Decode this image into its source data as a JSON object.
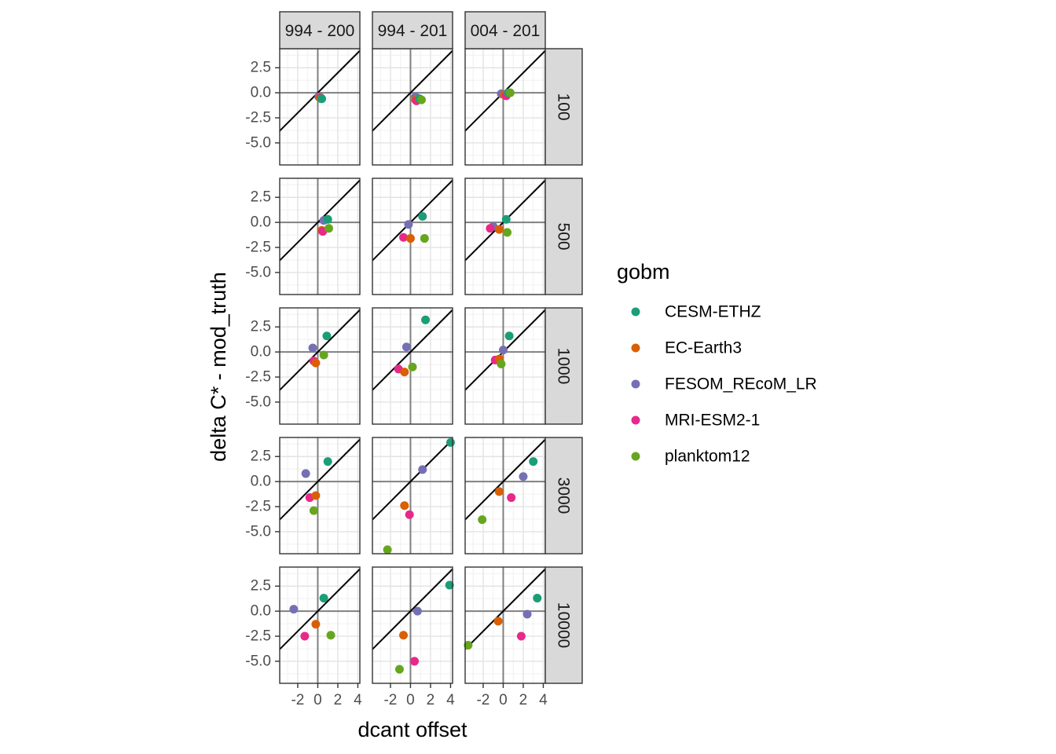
{
  "chart_data": {
    "type": "scatter",
    "title": "",
    "xlabel": "dcant offset",
    "ylabel": "delta C* - mod_truth",
    "xlim": [
      -3.8,
      4.2
    ],
    "ylim": [
      -7.2,
      4.4
    ],
    "x_ticks": [
      "-2",
      "0",
      "2",
      "4"
    ],
    "y_ticks": [
      "2.5",
      "0.0",
      "-2.5",
      "-5.0"
    ],
    "x_tick_values": [
      -2,
      0,
      2,
      4
    ],
    "y_tick_values": [
      2.5,
      0,
      -2.5,
      -5
    ],
    "grid": true,
    "reference_lines": [
      "y = x",
      "x = 0",
      "y = 0"
    ],
    "legend_position": "right",
    "col_facets": [
      "994 - 200",
      "994 - 201",
      "004 - 201"
    ],
    "row_facets": [
      "100",
      "500",
      "1000",
      "3000",
      "10000"
    ],
    "legend": {
      "title": "gobm",
      "series": [
        {
          "name": "CESM-ETHZ",
          "color": "#1B9E77"
        },
        {
          "name": "EC-Earth3",
          "color": "#D95F02"
        },
        {
          "name": "FESOM_REcoM_LR",
          "color": "#7570B3"
        },
        {
          "name": "MRI-ESM2-1",
          "color": "#E7298A"
        },
        {
          "name": "planktom12",
          "color": "#66A61E"
        }
      ]
    },
    "panels": [
      {
        "row": 0,
        "col": 0,
        "points": [
          [
            0.1,
            -0.4,
            2
          ],
          [
            0.2,
            -0.5,
            1
          ],
          [
            0.3,
            -0.5,
            3
          ],
          [
            0.35,
            -0.6,
            4
          ],
          [
            0.4,
            -0.6,
            0
          ]
        ]
      },
      {
        "row": 0,
        "col": 1,
        "points": [
          [
            0.5,
            -0.4,
            2
          ],
          [
            0.5,
            -0.7,
            1
          ],
          [
            0.6,
            -0.8,
            3
          ],
          [
            0.9,
            -0.6,
            0
          ],
          [
            1.1,
            -0.7,
            4
          ]
        ]
      },
      {
        "row": 0,
        "col": 2,
        "points": [
          [
            -0.2,
            -0.1,
            2
          ],
          [
            0.1,
            -0.2,
            1
          ],
          [
            0.3,
            -0.3,
            3
          ],
          [
            0.5,
            0.0,
            0
          ],
          [
            0.7,
            0.0,
            4
          ]
        ]
      },
      {
        "row": 1,
        "col": 0,
        "points": [
          [
            0.6,
            0.2,
            2
          ],
          [
            1.0,
            0.3,
            0
          ],
          [
            0.4,
            -0.8,
            1
          ],
          [
            0.5,
            -0.9,
            3
          ],
          [
            1.1,
            -0.6,
            4
          ]
        ]
      },
      {
        "row": 1,
        "col": 1,
        "points": [
          [
            -0.2,
            -0.2,
            2
          ],
          [
            1.2,
            0.6,
            0
          ],
          [
            -0.7,
            -1.5,
            3
          ],
          [
            0.0,
            -1.6,
            1
          ],
          [
            1.4,
            -1.6,
            4
          ]
        ]
      },
      {
        "row": 1,
        "col": 2,
        "points": [
          [
            -1.0,
            -0.4,
            2
          ],
          [
            -1.3,
            -0.6,
            3
          ],
          [
            -0.4,
            -0.7,
            1
          ],
          [
            0.3,
            0.3,
            0
          ],
          [
            0.4,
            -1.0,
            4
          ]
        ]
      },
      {
        "row": 2,
        "col": 0,
        "points": [
          [
            -0.5,
            0.4,
            2
          ],
          [
            0.9,
            1.6,
            0
          ],
          [
            -0.4,
            -0.9,
            3
          ],
          [
            -0.2,
            -1.1,
            1
          ],
          [
            0.6,
            -0.3,
            4
          ]
        ]
      },
      {
        "row": 2,
        "col": 1,
        "points": [
          [
            -0.4,
            0.5,
            2
          ],
          [
            1.5,
            3.2,
            0
          ],
          [
            -1.2,
            -1.7,
            3
          ],
          [
            -0.6,
            -2.0,
            1
          ],
          [
            0.2,
            -1.5,
            4
          ]
        ]
      },
      {
        "row": 2,
        "col": 2,
        "points": [
          [
            0.0,
            0.2,
            2
          ],
          [
            0.6,
            1.6,
            0
          ],
          [
            -0.8,
            -0.8,
            3
          ],
          [
            -0.4,
            -0.7,
            1
          ],
          [
            -0.2,
            -1.2,
            4
          ]
        ]
      },
      {
        "row": 3,
        "col": 0,
        "points": [
          [
            -1.2,
            0.8,
            2
          ],
          [
            1.0,
            2.0,
            0
          ],
          [
            -0.8,
            -1.6,
            3
          ],
          [
            -0.2,
            -1.4,
            1
          ],
          [
            -0.4,
            -2.9,
            4
          ]
        ]
      },
      {
        "row": 3,
        "col": 1,
        "points": [
          [
            1.2,
            1.2,
            2
          ],
          [
            4.0,
            3.9,
            0
          ],
          [
            -0.6,
            -2.4,
            1
          ],
          [
            -0.1,
            -3.3,
            3
          ],
          [
            -2.3,
            -6.8,
            4
          ]
        ]
      },
      {
        "row": 3,
        "col": 2,
        "points": [
          [
            2.0,
            0.5,
            2
          ],
          [
            3.0,
            2.0,
            0
          ],
          [
            -0.4,
            -1.0,
            1
          ],
          [
            0.8,
            -1.6,
            3
          ],
          [
            -2.1,
            -3.8,
            4
          ]
        ]
      },
      {
        "row": 4,
        "col": 0,
        "points": [
          [
            -2.4,
            0.2,
            2
          ],
          [
            0.6,
            1.3,
            0
          ],
          [
            -0.2,
            -1.3,
            1
          ],
          [
            -1.3,
            -2.5,
            3
          ],
          [
            1.3,
            -2.4,
            4
          ]
        ]
      },
      {
        "row": 4,
        "col": 1,
        "points": [
          [
            0.7,
            0.0,
            2
          ],
          [
            3.9,
            2.6,
            0
          ],
          [
            -0.7,
            -2.4,
            1
          ],
          [
            0.4,
            -5.0,
            3
          ],
          [
            -1.1,
            -5.8,
            4
          ]
        ]
      },
      {
        "row": 4,
        "col": 2,
        "points": [
          [
            2.4,
            -0.3,
            2
          ],
          [
            3.4,
            1.3,
            0
          ],
          [
            -0.5,
            -1.0,
            1
          ],
          [
            1.8,
            -2.5,
            3
          ],
          [
            -3.5,
            -3.4,
            4
          ]
        ]
      }
    ]
  }
}
